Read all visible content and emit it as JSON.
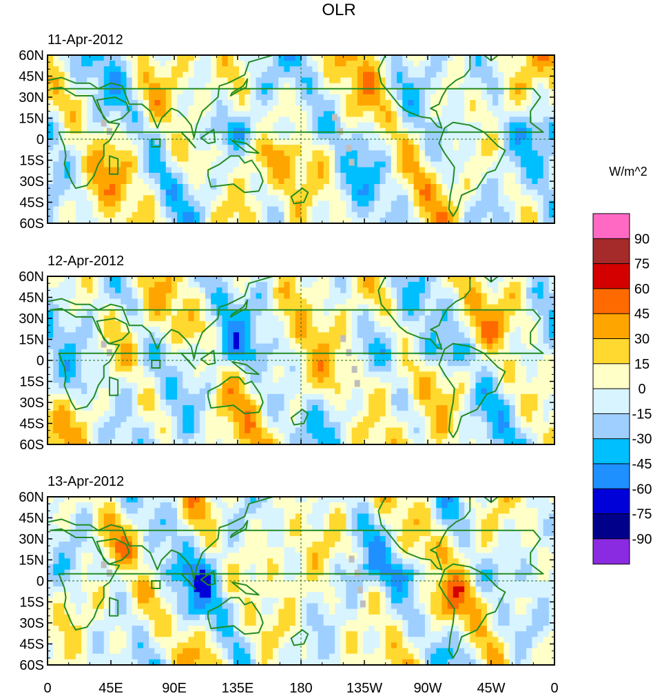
{
  "chart_data": {
    "type": "heatmap",
    "title": "OLR",
    "units": "W/m^2",
    "panels": [
      {
        "label": "11-Apr-2012",
        "seed": 11
      },
      {
        "label": "12-Apr-2012",
        "seed": 12
      },
      {
        "label": "13-Apr-2012",
        "seed": 13
      }
    ],
    "ylabels": [
      "60N",
      "45N",
      "30N",
      "15N",
      "0",
      "15S",
      "30S",
      "45S",
      "60S"
    ],
    "xlabels": [
      "0",
      "45E",
      "90E",
      "135E",
      "180",
      "135W",
      "90W",
      "45W",
      "0"
    ],
    "lat_range": [
      -60,
      60
    ],
    "lon_range": [
      0,
      360
    ],
    "colorbar": {
      "labels": [
        "90",
        "75",
        "60",
        "45",
        "30",
        "15",
        "0",
        "-15",
        "-30",
        "-45",
        "-60",
        "-75",
        "-90"
      ],
      "levels": [
        -90,
        -75,
        -60,
        -45,
        -30,
        -15,
        0,
        15,
        30,
        45,
        60,
        75,
        90
      ],
      "colors": [
        "#ff69c4",
        "#a52a2a",
        "#d40000",
        "#ff6a00",
        "#ffa500",
        "#ffd92f",
        "#ffffc8",
        "#d8f4ff",
        "#9fcfff",
        "#00bfff",
        "#1e90ff",
        "#0000d8",
        "#00008b",
        "#8a2be2"
      ]
    },
    "missing_color": "#bebebe",
    "land_outline_color": "#228b22"
  }
}
